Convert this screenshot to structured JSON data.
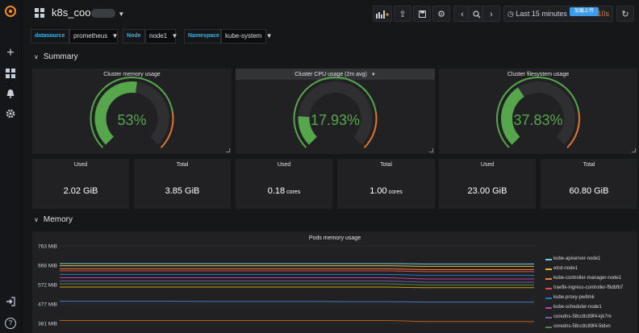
{
  "app": {
    "dashboard_title": "k8s_coo"
  },
  "toolbar": {
    "time_range": "Last 15 minutes",
    "refresh_interval": "10s",
    "badge": "加载上传"
  },
  "variables": [
    {
      "label": "datasource",
      "value": "prometheus"
    },
    {
      "label": "Node",
      "value": "node1"
    },
    {
      "label": "Namespace",
      "value": "kube-system"
    }
  ],
  "rows": {
    "summary": "Summary",
    "memory": "Memory"
  },
  "gauges": [
    {
      "title": "Cluster memory usage",
      "value": 53,
      "label": "53%"
    },
    {
      "title": "Cluster CPU usage (2m avg)",
      "value": 17.93,
      "label": "17.93%"
    },
    {
      "title": "Cluster filesystem usage",
      "value": 37.83,
      "label": "37.83%"
    }
  ],
  "stats": [
    {
      "title": "Used",
      "value": "2.02 GiB",
      "unit": ""
    },
    {
      "title": "Total",
      "value": "3.85 GiB",
      "unit": ""
    },
    {
      "title": "Used",
      "value": "0.18",
      "unit": " cores"
    },
    {
      "title": "Total",
      "value": "1.00",
      "unit": " cores"
    },
    {
      "title": "Used",
      "value": "23.00 GiB",
      "unit": ""
    },
    {
      "title": "Total",
      "value": "60.80 GiB",
      "unit": ""
    }
  ],
  "colors": {
    "gauge_green": "#56a64b",
    "gauge_warn": "#e0752d",
    "accent_blue": "#33b5e5"
  },
  "chart_data": {
    "type": "line",
    "title": "Pods memory usage",
    "y_ticks": [
      "763 MiB",
      "668 MiB",
      "572 MiB",
      "477 MiB",
      "381 MiB"
    ],
    "ylim": [
      381,
      763
    ],
    "series": [
      {
        "name": "kube-apiserver-node1",
        "color": "#6ed0e0",
        "values": [
          676,
          676,
          676,
          676,
          676,
          676,
          676,
          676,
          676,
          676,
          674,
          674,
          674,
          674
        ]
      },
      {
        "name": "etcd-node1",
        "color": "#eab839",
        "values": [
          665,
          665,
          665,
          665,
          665,
          665,
          665,
          665,
          665,
          665,
          662,
          662,
          662,
          662
        ]
      },
      {
        "name": "kube-controller-manager-node1",
        "color": "#ef843c",
        "values": [
          650,
          650,
          650,
          650,
          650,
          650,
          650,
          650,
          650,
          650,
          646,
          646,
          646,
          646
        ]
      },
      {
        "name": "traefik-ingress-controller-f9dbfb7",
        "color": "#e24d42",
        "values": [
          640,
          640,
          640,
          640,
          640,
          640,
          640,
          640,
          640,
          640,
          636,
          636,
          636,
          636
        ]
      },
      {
        "name": "kube-proxy-pw8mk",
        "color": "#1f78c1",
        "values": [
          622,
          622,
          622,
          622,
          622,
          622,
          622,
          622,
          622,
          622,
          618,
          618,
          618,
          618
        ]
      },
      {
        "name": "kube-scheduler-node1",
        "color": "#ba43a9",
        "values": [
          606,
          606,
          606,
          606,
          606,
          606,
          606,
          606,
          606,
          606,
          600,
          600,
          600,
          600
        ]
      },
      {
        "name": "coredns-58cc8c89f4-kjk7m",
        "color": "#705da0",
        "values": [
          590,
          590,
          590,
          590,
          590,
          590,
          590,
          590,
          590,
          590,
          584,
          584,
          584,
          584
        ]
      },
      {
        "name": "coredns-58cc8c89f4-5tdvn",
        "color": "#508642",
        "values": [
          576,
          576,
          576,
          576,
          576,
          576,
          576,
          576,
          576,
          576,
          570,
          570,
          570,
          570
        ]
      },
      {
        "name": "",
        "color": "#cca300",
        "values": [
          560,
          560,
          560,
          560,
          560,
          560,
          560,
          560,
          560,
          560,
          557,
          557,
          557,
          557
        ]
      },
      {
        "name": "",
        "color": "#447ebc",
        "values": [
          490,
          490,
          490,
          490,
          489,
          489,
          489,
          489,
          488,
          488,
          486,
          486,
          486,
          486
        ]
      },
      {
        "name": "",
        "color": "#c15c17",
        "values": [
          395,
          395,
          395,
          395,
          395,
          395,
          395,
          395,
          395,
          395,
          390,
          390,
          390,
          390
        ]
      }
    ]
  }
}
